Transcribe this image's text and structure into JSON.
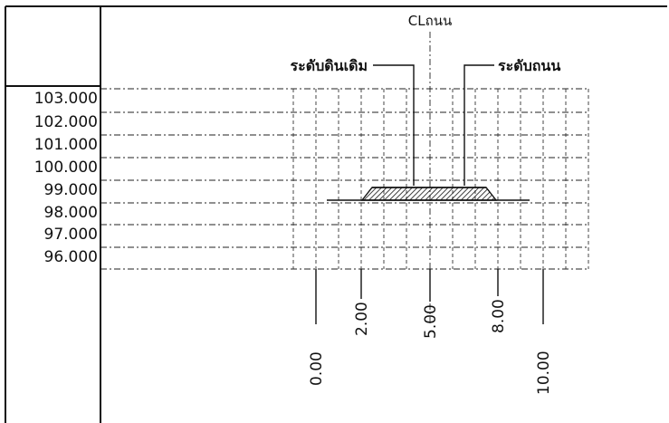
{
  "diagram": {
    "centerline_label": "CLถนน",
    "callout_left": "ระดับดินเดิม",
    "callout_right": "ระดับถนน",
    "elevation_labels": [
      "103.000",
      "102.000",
      "101.000",
      "100.000",
      "99.000",
      "98.000",
      "97.000",
      "96.000"
    ],
    "offset_labels": [
      "0.00",
      "2.00",
      "5.00",
      "8.00",
      "10.00"
    ],
    "existing_ground_level": "98.000",
    "road_level": "99.000"
  }
}
